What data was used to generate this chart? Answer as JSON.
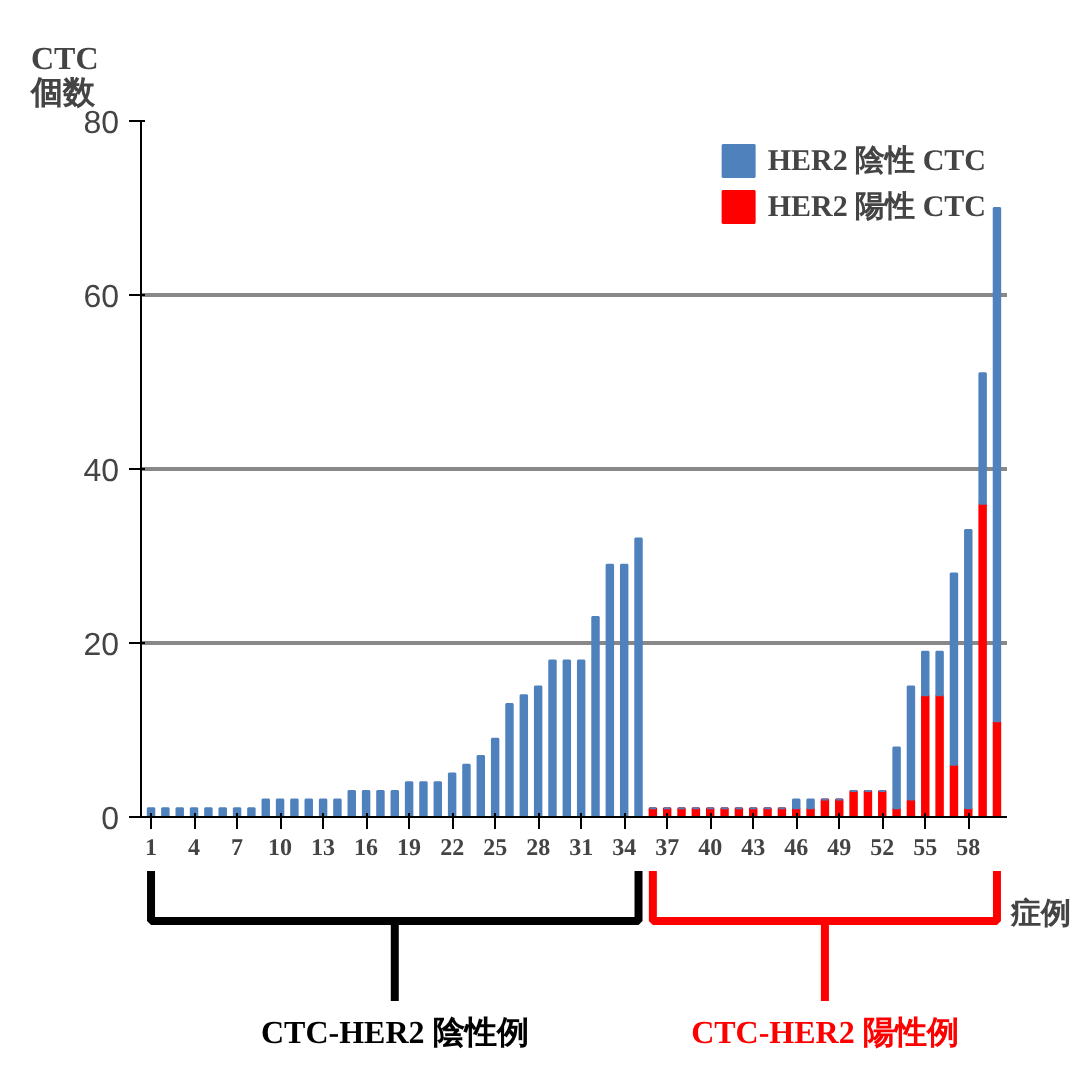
{
  "chart_data": {
    "type": "bar",
    "stacked": true,
    "ylabel": "CTC 個数",
    "xlabel": "症例",
    "categories": [
      "1",
      null,
      null,
      "4",
      null,
      null,
      "7",
      null,
      null,
      "10",
      null,
      null,
      "13",
      null,
      null,
      "16",
      null,
      null,
      "19",
      null,
      null,
      "22",
      null,
      null,
      "25",
      null,
      null,
      "28",
      null,
      null,
      "31",
      null,
      null,
      "34",
      null,
      null,
      "37",
      null,
      null,
      "40",
      null,
      null,
      "43",
      null,
      null,
      "46",
      null,
      null,
      "49",
      null,
      null,
      "52",
      null,
      null,
      "55",
      null,
      null,
      "58",
      null,
      null
    ],
    "series": [
      {
        "name": "HER2 陽性 CTC",
        "color": "#ff0000",
        "values": [
          0,
          0,
          0,
          0,
          0,
          0,
          0,
          0,
          0,
          0,
          0,
          0,
          0,
          0,
          0,
          0,
          0,
          0,
          0,
          0,
          0,
          0,
          0,
          0,
          0,
          0,
          0,
          0,
          0,
          0,
          0,
          0,
          0,
          0,
          0,
          1,
          1,
          1,
          1,
          1,
          1,
          1,
          1,
          1,
          1,
          1,
          1,
          2,
          2,
          3,
          3,
          3,
          1,
          2,
          14,
          14,
          6,
          1,
          36,
          11
        ]
      },
      {
        "name": "HER2 陰性 CTC",
        "color": "#4f81bd",
        "values": [
          1,
          1,
          1,
          1,
          1,
          1,
          1,
          1,
          2,
          2,
          2,
          2,
          2,
          2,
          3,
          3,
          3,
          3,
          4,
          4,
          4,
          5,
          6,
          7,
          9,
          13,
          14,
          15,
          18,
          18,
          18,
          23,
          29,
          29,
          32,
          0,
          0,
          0,
          0,
          0,
          0,
          0,
          0,
          0,
          0,
          1,
          1,
          0,
          0,
          0,
          0,
          0,
          7,
          13,
          5,
          5,
          22,
          32,
          15,
          59
        ]
      }
    ],
    "ylim": [
      0,
      80
    ],
    "yticks": [
      0,
      20,
      40,
      60,
      80
    ],
    "grid": "y",
    "legend": "top right",
    "annotations": [
      "CTC-HER2 陰性例",
      "CTC-HER2 陽性例"
    ]
  }
}
